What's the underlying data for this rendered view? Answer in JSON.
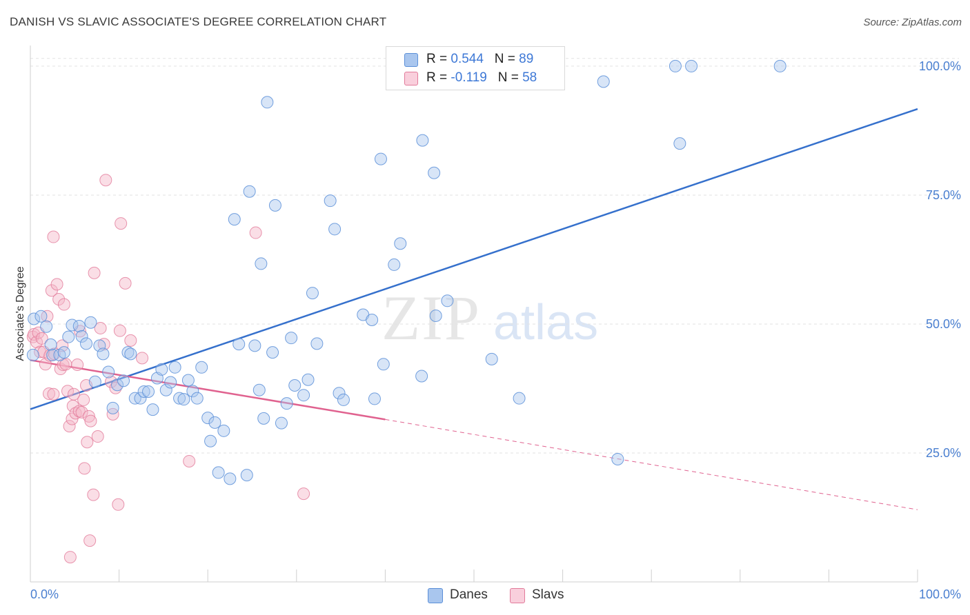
{
  "header": {
    "title": "DANISH VS SLAVIC ASSOCIATE'S DEGREE CORRELATION CHART",
    "source": "Source: ZipAtlas.com"
  },
  "legend": {
    "danes": {
      "r_label": "R =",
      "r_value": "0.544",
      "n_label": "N =",
      "n_value": "89"
    },
    "slavs": {
      "r_label": "R =",
      "r_value": "-0.119",
      "n_label": "N =",
      "n_value": "58"
    }
  },
  "bottom_legend": {
    "danes": "Danes",
    "slavs": "Slavs"
  },
  "watermark": {
    "zip": "ZIP",
    "atlas": "atlas"
  },
  "colors": {
    "danes_fill": "#a9c6ee",
    "danes_stroke": "#5b8fd8",
    "danes_line": "#3570cc",
    "slavs_fill": "#f4b6c8",
    "slavs_stroke": "#e27a9a",
    "slavs_line": "#e0628f",
    "grid": "#e2e2e2",
    "tick_text": "#4a7fd0"
  },
  "chart_data": {
    "type": "scatter",
    "title": "DANISH VS SLAVIC ASSOCIATE'S DEGREE CORRELATION CHART",
    "xlabel": "",
    "ylabel": "Associate's Degree",
    "xlim": [
      0,
      100
    ],
    "ylim": [
      0,
      104
    ],
    "x_tick_labels": [
      "0.0%",
      "100.0%"
    ],
    "y_ticks": [
      25,
      50,
      75,
      100
    ],
    "y_tick_labels": [
      "25.0%",
      "50.0%",
      "75.0%",
      "100.0%"
    ],
    "grid": true,
    "legend_placement": "top-center",
    "series": [
      {
        "name": "Danes",
        "r": 0.544,
        "n": 89,
        "trend": {
          "x": [
            0,
            100
          ],
          "y": [
            33.5,
            91.7
          ]
        },
        "points": [
          [
            0.3,
            44
          ],
          [
            0.4,
            51
          ],
          [
            1.2,
            51.5
          ],
          [
            1.8,
            49.5
          ],
          [
            2.3,
            46
          ],
          [
            2.5,
            44
          ],
          [
            3.3,
            44
          ],
          [
            3.8,
            44.5
          ],
          [
            4.3,
            47.5
          ],
          [
            4.7,
            49.8
          ],
          [
            5.5,
            49.6
          ],
          [
            5.8,
            47.6
          ],
          [
            6.3,
            46.2
          ],
          [
            6.8,
            50.3
          ],
          [
            7.3,
            38.8
          ],
          [
            7.8,
            45.8
          ],
          [
            8.2,
            44.2
          ],
          [
            8.8,
            40.7
          ],
          [
            9.3,
            33.7
          ],
          [
            9.8,
            38.2
          ],
          [
            10.5,
            39
          ],
          [
            11,
            44.5
          ],
          [
            11.3,
            44.2
          ],
          [
            11.8,
            35.6
          ],
          [
            12.4,
            35.6
          ],
          [
            12.8,
            36.9
          ],
          [
            13.3,
            36.9
          ],
          [
            13.8,
            33.4
          ],
          [
            14.3,
            39.5
          ],
          [
            14.8,
            41.2
          ],
          [
            15.3,
            37.2
          ],
          [
            15.8,
            38.7
          ],
          [
            16.3,
            41.6
          ],
          [
            16.8,
            35.6
          ],
          [
            17.3,
            35.4
          ],
          [
            17.8,
            39.1
          ],
          [
            18.3,
            37
          ],
          [
            18.8,
            35.6
          ],
          [
            19.3,
            41.6
          ],
          [
            20,
            31.8
          ],
          [
            20.3,
            27.3
          ],
          [
            20.8,
            30.9
          ],
          [
            21.2,
            21.2
          ],
          [
            21.8,
            29.3
          ],
          [
            22.5,
            20
          ],
          [
            23,
            70.3
          ],
          [
            23.5,
            46.1
          ],
          [
            24.4,
            20.7
          ],
          [
            24.7,
            75.7
          ],
          [
            25.3,
            45.8
          ],
          [
            25.8,
            37.2
          ],
          [
            26,
            61.7
          ],
          [
            26.3,
            31.7
          ],
          [
            26.7,
            93
          ],
          [
            27.3,
            44.5
          ],
          [
            27.6,
            73
          ],
          [
            28.3,
            30.8
          ],
          [
            28.9,
            34.6
          ],
          [
            29.4,
            47.3
          ],
          [
            29.8,
            38.1
          ],
          [
            30.8,
            36.2
          ],
          [
            31.3,
            39.2
          ],
          [
            31.8,
            56
          ],
          [
            32.3,
            46.2
          ],
          [
            33.8,
            73.9
          ],
          [
            34.3,
            68.4
          ],
          [
            34.8,
            36.6
          ],
          [
            35.3,
            35.3
          ],
          [
            37.5,
            51.8
          ],
          [
            38.5,
            50.8
          ],
          [
            38.8,
            35.5
          ],
          [
            39.5,
            82
          ],
          [
            39.8,
            42.2
          ],
          [
            41,
            61.5
          ],
          [
            41.7,
            65.6
          ],
          [
            44.1,
            39.9
          ],
          [
            44.2,
            85.6
          ],
          [
            45.5,
            79.3
          ],
          [
            45.7,
            51.6
          ],
          [
            47,
            54.5
          ],
          [
            52,
            43.2
          ],
          [
            55.1,
            35.6
          ],
          [
            58.6,
            100
          ],
          [
            64.6,
            97
          ],
          [
            66.2,
            23.8
          ],
          [
            72.7,
            100
          ],
          [
            73.2,
            85
          ],
          [
            74.5,
            100
          ],
          [
            84.5,
            100
          ]
        ]
      },
      {
        "name": "Slavs",
        "r": -0.119,
        "n": 58,
        "trend": {
          "x": [
            0,
            40
          ],
          "y": [
            43,
            31.5
          ]
        },
        "trend_dashed": {
          "x": [
            40,
            100
          ],
          "y": [
            31.5,
            14
          ]
        },
        "points": [
          [
            0.3,
            47.5
          ],
          [
            0.4,
            48
          ],
          [
            0.7,
            46.5
          ],
          [
            0.9,
            48.3
          ],
          [
            1.1,
            44.6
          ],
          [
            1.3,
            47.2
          ],
          [
            1.5,
            44.6
          ],
          [
            1.7,
            42.2
          ],
          [
            1.9,
            51.5
          ],
          [
            2.1,
            36.5
          ],
          [
            2.2,
            43.9
          ],
          [
            2.4,
            56.5
          ],
          [
            2.6,
            36.4
          ],
          [
            2.6,
            66.9
          ],
          [
            2.7,
            44.2
          ],
          [
            3.0,
            57.7
          ],
          [
            3.2,
            54.8
          ],
          [
            3.4,
            41.3
          ],
          [
            3.6,
            45.8
          ],
          [
            3.7,
            42.1
          ],
          [
            3.8,
            53.8
          ],
          [
            4.0,
            42.2
          ],
          [
            4.2,
            37
          ],
          [
            4.4,
            30.2
          ],
          [
            4.5,
            4.8
          ],
          [
            4.7,
            31.6
          ],
          [
            4.8,
            34.1
          ],
          [
            4.9,
            36.4
          ],
          [
            5.1,
            32.7
          ],
          [
            5.3,
            42.1
          ],
          [
            5.5,
            33.1
          ],
          [
            5.6,
            48.6
          ],
          [
            5.8,
            32.9
          ],
          [
            6.0,
            35.3
          ],
          [
            6.1,
            22
          ],
          [
            6.3,
            38.1
          ],
          [
            6.4,
            27.1
          ],
          [
            6.6,
            32.1
          ],
          [
            6.7,
            8
          ],
          [
            6.8,
            31.2
          ],
          [
            7.1,
            16.9
          ],
          [
            7.2,
            59.9
          ],
          [
            7.6,
            28.2
          ],
          [
            7.9,
            49.2
          ],
          [
            8.3,
            46.1
          ],
          [
            8.5,
            77.9
          ],
          [
            9.1,
            38.8
          ],
          [
            9.3,
            32.5
          ],
          [
            9.6,
            37.6
          ],
          [
            9.9,
            15
          ],
          [
            10.1,
            48.7
          ],
          [
            10.2,
            69.5
          ],
          [
            10.7,
            57.9
          ],
          [
            12.6,
            43.4
          ],
          [
            17.9,
            23.4
          ],
          [
            25.4,
            67.7
          ],
          [
            30.8,
            17.1
          ],
          [
            11.3,
            46.8
          ]
        ]
      }
    ]
  }
}
